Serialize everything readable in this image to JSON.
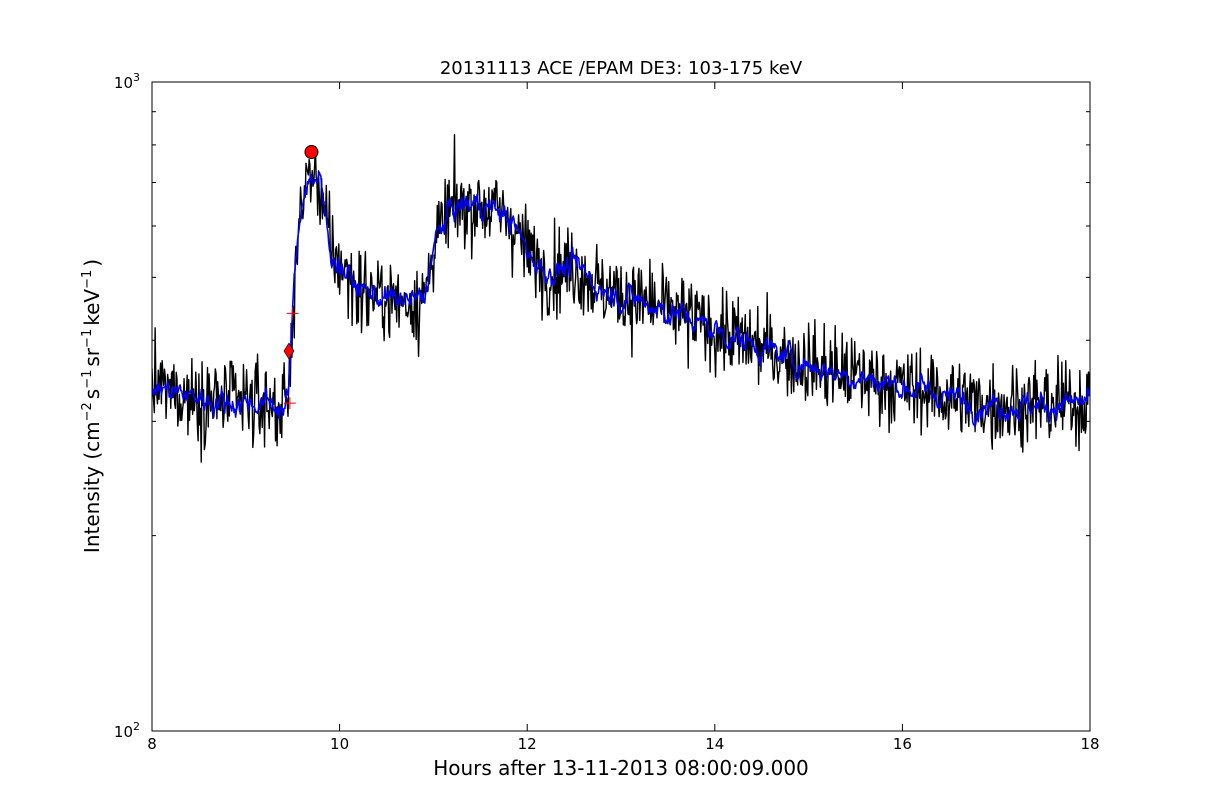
{
  "chart_data": {
    "type": "line",
    "title": "20131113 ACE /EPAM DE3: 103-175 keV",
    "xlabel": "Hours after 13-11-2013 08:00:09.000",
    "ylabel": "Intensity (cm⁻² s⁻¹ sr⁻¹ keV⁻¹)",
    "ylabel_parts": {
      "prefix": "Intensity (cm",
      "sup1": "−2",
      "mid1": "s",
      "sup2": "−1",
      "mid2": "sr",
      "sup3": "−1",
      "mid3": "keV",
      "sup4": "−1",
      "suffix": ")"
    },
    "xlim": [
      8,
      18
    ],
    "ylim": [
      100,
      1000
    ],
    "yscale": "log",
    "x_ticks": [
      "8",
      "10",
      "12",
      "14",
      "16",
      "18"
    ],
    "y_ticks": [
      {
        "base": "10",
        "exp": "2"
      },
      {
        "base": "10",
        "exp": "3"
      }
    ],
    "grid": false,
    "colors": {
      "raw": "#000000",
      "smoothed": "#0000ff",
      "marker": "#ff0000"
    },
    "series": [
      {
        "style": "raw",
        "x": [
          8.0,
          8.4,
          8.8,
          9.2,
          9.42,
          9.46,
          9.5,
          9.55,
          9.62,
          9.7,
          9.8,
          9.9,
          10.2,
          10.6,
          10.9,
          11.0,
          11.2,
          11.5,
          11.8,
          12.0,
          12.2,
          12.5,
          12.8,
          13.2,
          13.6,
          14.0,
          14.4,
          14.8,
          15.2,
          15.6,
          16.0,
          16.4,
          16.8,
          17.2,
          17.6,
          18.0
        ],
        "y": [
          340,
          328,
          322,
          320,
          315,
          330,
          450,
          560,
          690,
          720,
          690,
          550,
          480,
          460,
          460,
          560,
          640,
          650,
          620,
          550,
          510,
          520,
          480,
          460,
          440,
          415,
          395,
          375,
          360,
          350,
          340,
          330,
          320,
          318,
          318,
          322
        ]
      },
      {
        "style": "smoothed",
        "x": [
          8.0,
          8.4,
          8.8,
          9.2,
          9.42,
          9.46,
          9.5,
          9.55,
          9.62,
          9.7,
          9.8,
          9.9,
          10.2,
          10.6,
          10.9,
          11.0,
          11.2,
          11.5,
          11.8,
          12.0,
          12.2,
          12.5,
          12.8,
          13.2,
          13.6,
          14.0,
          14.4,
          14.8,
          15.2,
          15.6,
          16.0,
          16.4,
          16.8,
          17.2,
          17.6,
          18.0
        ],
        "y": [
          340,
          328,
          322,
          320,
          315,
          330,
          450,
          560,
          690,
          720,
          690,
          550,
          480,
          460,
          460,
          560,
          640,
          650,
          620,
          550,
          510,
          520,
          480,
          460,
          440,
          415,
          395,
          375,
          360,
          350,
          340,
          330,
          320,
          318,
          318,
          322
        ]
      }
    ],
    "markers": [
      {
        "type": "circle",
        "x": 9.7,
        "y": 780
      },
      {
        "type": "diamond",
        "x": 9.46,
        "y": 385
      },
      {
        "type": "plus",
        "x": 9.5,
        "y": 440
      },
      {
        "type": "plus",
        "x": 9.47,
        "y": 320
      }
    ]
  }
}
